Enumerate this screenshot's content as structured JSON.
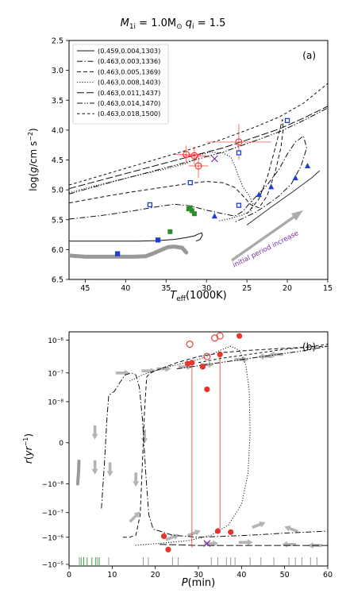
{
  "figure_title": "M_1i = 1.0M_⊙ q_i = 1.5",
  "title_parts": {
    "m": "M",
    "m_sub": "1i",
    "eq": " = 1.0M",
    "sun": "⊙",
    "q": " q",
    "q_sub": "i",
    "q_val": " = 1.5"
  },
  "colors": {
    "dark_line": "#111111",
    "blue": "#1f3fd0",
    "red": "#e8352a",
    "green": "#2e8b2e",
    "purple": "#7a2aa8",
    "gray": "#999999"
  },
  "chart_data": [
    {
      "type": "line",
      "panel_label": "(a)",
      "xlabel": "T_eff(1000K)",
      "xlabel_parts": {
        "main": "T",
        "sub": "eff",
        "rest": "(1000K)"
      },
      "ylabel": "log(g/cm s^-2)",
      "xlim": [
        47,
        15
      ],
      "ylim": [
        6.5,
        2.5
      ],
      "xticks": [
        45,
        40,
        35,
        30,
        25,
        20,
        15
      ],
      "yticks": [
        2.5,
        3.0,
        3.5,
        4.0,
        4.5,
        5.0,
        5.5,
        6.0,
        6.5
      ],
      "grid": false,
      "legend_position": "top-left",
      "annotation": {
        "text": "initial period increase",
        "color": "#7a2aa8"
      },
      "series": [
        {
          "name": "(0.459,0.004,1303)",
          "style": "solid",
          "x": [
            47.0,
            44.0,
            41.0,
            38.5,
            36.0,
            34.0,
            32.5,
            31.5,
            31.0,
            30.6,
            30.5,
            30.8,
            31.3
          ],
          "y": [
            5.86,
            5.86,
            5.86,
            5.86,
            5.85,
            5.83,
            5.8,
            5.77,
            5.74,
            5.72,
            5.76,
            5.83,
            5.86
          ]
        },
        {
          "name": "(0.463,0.003,1336)",
          "style": "dashdot",
          "x": [
            47.0,
            43.0,
            39.0,
            36.0,
            34.0,
            32.0,
            30.0,
            28.0,
            26.5,
            25.5,
            24.5,
            22.5,
            21.0,
            20.0,
            19.0,
            18.0,
            17.6,
            18.3,
            19.5,
            21.0,
            22.5,
            24.0,
            25.5,
            26.5
          ],
          "y": [
            5.49,
            5.43,
            5.35,
            5.28,
            5.24,
            5.27,
            5.34,
            5.4,
            5.44,
            5.36,
            5.2,
            4.92,
            4.65,
            4.4,
            4.2,
            4.1,
            4.3,
            4.6,
            4.9,
            5.1,
            5.25,
            5.38,
            5.48,
            5.54
          ]
        },
        {
          "name": "(0.463,0.005,1369)",
          "style": "dashed",
          "x": [
            47.0,
            43.0,
            39.0,
            35.0,
            32.0,
            30.0,
            28.0,
            26.5,
            25.5,
            24.5,
            23.5,
            22.5,
            21.5,
            20.8,
            20.5,
            20.6,
            21.5,
            22.5,
            23.5,
            25.0
          ],
          "y": [
            5.22,
            5.12,
            5.03,
            4.95,
            4.89,
            4.86,
            4.88,
            4.96,
            5.1,
            5.25,
            5.3,
            5.1,
            4.7,
            4.3,
            3.98,
            3.82,
            4.3,
            4.8,
            5.15,
            5.4
          ]
        },
        {
          "name": "(0.463,0.008,1403)",
          "style": "dotted",
          "x": [
            47.0,
            44.0,
            41.0,
            38.0,
            35.0,
            32.5,
            31.5,
            31.0,
            29.5,
            28.0,
            27.0,
            26.5,
            26.0,
            25.5,
            24.7,
            24.2,
            24.5,
            25.5,
            27.0,
            28.5
          ],
          "y": [
            5.05,
            4.94,
            4.84,
            4.74,
            4.65,
            4.56,
            4.49,
            4.42,
            4.37,
            4.38,
            4.45,
            4.6,
            4.78,
            4.95,
            5.1,
            5.25,
            5.35,
            5.42,
            5.48,
            5.52
          ]
        },
        {
          "name": "(0.463,0.011,1437)",
          "style": "longdash",
          "x": [
            47.0,
            42.0,
            37.0,
            32.0,
            28.0,
            24.0,
            21.0,
            18.0,
            15.0
          ],
          "y": [
            4.98,
            4.8,
            4.62,
            4.44,
            4.3,
            4.12,
            3.98,
            3.8,
            3.6
          ]
        },
        {
          "name": "(0.463,0.014,1470)",
          "style": "dashdotdot",
          "x": [
            47.0,
            42.0,
            37.0,
            32.0,
            28.0,
            24.0,
            21.0,
            18.0,
            15.0
          ],
          "y": [
            5.07,
            4.88,
            4.7,
            4.52,
            4.37,
            4.18,
            4.03,
            3.84,
            3.63
          ]
        },
        {
          "name": "(0.463,0.018,1500)",
          "style": "dashed2",
          "x": [
            47.0,
            42.0,
            37.0,
            32.0,
            28.0,
            24.0,
            21.0,
            18.0,
            15.0
          ],
          "y": [
            4.92,
            4.72,
            4.52,
            4.32,
            4.15,
            3.95,
            3.78,
            3.55,
            3.22
          ]
        }
      ],
      "thick_gray_track": {
        "x": [
          47.0,
          45.0,
          43.0,
          41.0,
          39.0,
          37.5,
          36.5,
          35.5,
          34.8,
          34.0,
          33.0,
          32.5
        ],
        "y": [
          6.1,
          6.12,
          6.12,
          6.12,
          6.12,
          6.11,
          6.06,
          6.0,
          5.96,
          5.95,
          5.97,
          6.05
        ]
      },
      "thin_track_lower": {
        "x": [
          25.0,
          22.0,
          19.0,
          17.0,
          16.0
        ],
        "y": [
          5.59,
          5.29,
          5.0,
          4.8,
          4.68
        ]
      },
      "blue_squares": {
        "x": [
          41.0,
          36.0,
          37.0,
          32.0,
          26.0,
          20.0,
          26.0
        ],
        "y": [
          6.07,
          5.84,
          5.25,
          4.88,
          5.26,
          3.84,
          4.38
        ]
      },
      "blue_triangles": {
        "x": [
          29.0,
          23.5,
          22.0,
          19.0,
          17.5
        ],
        "y": [
          5.44,
          5.08,
          4.95,
          4.8,
          4.6
        ]
      },
      "green_squares": {
        "x": [
          34.5,
          32.0,
          31.8,
          31.5,
          32.2
        ],
        "y": [
          5.7,
          5.3,
          5.35,
          5.4,
          5.32
        ]
      },
      "red_open_circles": {
        "x": [
          32.5,
          31.5,
          31.0,
          26.0
        ],
        "y": [
          4.41,
          4.43,
          4.6,
          4.2
        ],
        "x_err": [
          1.5,
          1.5,
          1.2,
          4.0
        ],
        "y_err": [
          0.15,
          0.15,
          0.2,
          0.3
        ]
      },
      "purple_cross": {
        "x": [
          29.0
        ],
        "y": [
          4.48
        ]
      }
    },
    {
      "type": "line",
      "panel_label": "(b)",
      "xlabel": "P(min)",
      "xlabel_parts": {
        "main": "P",
        "rest": "(min)"
      },
      "ylabel": "r(yr^-1)",
      "yscale": "symlog",
      "linthresh": 1e-08,
      "xlim": [
        0,
        60
      ],
      "xticks": [
        0,
        10,
        20,
        30,
        40,
        50,
        60
      ],
      "yticks_labels": [
        "−10⁻⁵",
        "−10⁻⁶",
        "−10⁻⁷",
        "−10⁻⁸",
        "0",
        "10⁻⁸",
        "10⁻⁷",
        "10⁻⁶"
      ],
      "grid": false,
      "series": [
        {
          "name": "(0.463,0.003,1336)",
          "style": "dashdot",
          "x": [
            7.5,
            8.2,
            8.8,
            9.2,
            9.8,
            10.5,
            12.0,
            13.0,
            14.5,
            15.5,
            16.3,
            17.0,
            17.8,
            18.5,
            19.5,
            24.0,
            30.0,
            36.0,
            42.0,
            50.0,
            60.0
          ],
          "y": [
            -3.2,
            -1.0,
            1.2,
            2.3,
            2.4,
            2.5,
            3.0,
            3.3,
            3.4,
            3.3,
            2.7,
            1.2,
            -1.5,
            -3.5,
            -4.2,
            -4.5,
            -4.6,
            -4.55,
            -4.5,
            -4.4,
            -4.3
          ]
        },
        {
          "name": "(0.463,0.005,1369)",
          "style": "dashed",
          "x": [
            12.5,
            14.0,
            15.5,
            16.5,
            17.0,
            17.5,
            18.0,
            18.8,
            20.0,
            25.0,
            30.0,
            36.0,
            42.0,
            50.0,
            60.0
          ],
          "y": [
            -4.6,
            -4.6,
            -4.5,
            -3.5,
            -1.0,
            1.5,
            3.2,
            3.4,
            3.5,
            3.9,
            4.2,
            4.4,
            4.5,
            4.6,
            4.7
          ]
        },
        {
          "name": "(0.463,0.008,1403)",
          "style": "dotted",
          "x": [
            14.0,
            17.0,
            21.0,
            25.0,
            29.0,
            32.0,
            35.0,
            37.5,
            39.5,
            41.0,
            41.8,
            42.0,
            41.5,
            40.0,
            37.0,
            33.0,
            28.0,
            21.0,
            15.0
          ],
          "y": [
            3.0,
            3.3,
            3.6,
            3.8,
            4.0,
            4.2,
            4.5,
            4.7,
            4.5,
            3.8,
            2.5,
            0.5,
            -1.5,
            -3.0,
            -4.0,
            -4.5,
            -4.75,
            -4.9,
            -5.0
          ]
        },
        {
          "name": "(0.463,0.011,1437)",
          "style": "longdash",
          "x": [
            21.0,
            25.0,
            30.0,
            35.0,
            40.0,
            45.0,
            50.0,
            55.0,
            60.0
          ],
          "y": [
            -4.95,
            -4.97,
            -5.0,
            -5.0,
            -5.0,
            -5.0,
            -5.0,
            -5.0,
            -5.0
          ]
        },
        {
          "name": "(0.463,0.014,1470)",
          "style": "dashdotdot",
          "x": [
            25.0,
            30.0,
            35.0,
            40.0,
            45.0,
            50.0,
            55.0,
            60.0
          ],
          "y": [
            3.6,
            3.75,
            3.9,
            4.05,
            4.2,
            4.35,
            4.5,
            4.7
          ]
        },
        {
          "name": "(0.463,0.018,1500)",
          "style": "dashed2",
          "x": [
            30.0,
            35.0,
            40.0,
            45.0,
            50.0,
            55.0,
            60.0
          ],
          "y": [
            3.9,
            4.1,
            4.25,
            4.4,
            4.55,
            4.65,
            4.8
          ]
        }
      ],
      "thick_gray_segment": {
        "x": [
          2.0,
          2.2,
          2.3
        ],
        "y": [
          -2.0,
          -1.4,
          -0.9
        ]
      },
      "red_filled_circles": {
        "x": [
          22.0,
          23.0,
          27.5,
          28.5,
          31.0,
          32.0,
          35.0,
          34.5,
          37.5,
          39.5
        ],
        "y": [
          -4.55,
          -5.2,
          3.85,
          3.9,
          3.7,
          2.6,
          4.3,
          -4.3,
          -4.35,
          5.2
        ],
        "y_err_low": [
          0,
          0,
          0,
          9.0,
          0,
          0,
          8.5,
          0,
          0,
          0
        ]
      },
      "red_open_circles": {
        "x": [
          28.0,
          32.0,
          33.8,
          35.0
        ],
        "y": [
          4.8,
          4.2,
          5.1,
          5.2
        ]
      },
      "purple_cross": {
        "x": [
          32.0
        ],
        "y": [
          -4.9
        ]
      },
      "rug_green_x": [
        2.8,
        3.4,
        4.2,
        5.3,
        6.2,
        7.0
      ],
      "rug_gray_x": [
        2.4,
        6.6,
        9.2,
        17.2,
        18.4,
        24.0,
        25.3,
        33.0,
        34.5,
        36.5,
        37.5,
        38.5,
        42.0,
        44.5,
        47.5,
        51.0,
        52.5,
        54.0,
        56.0,
        57.5
      ]
    }
  ]
}
